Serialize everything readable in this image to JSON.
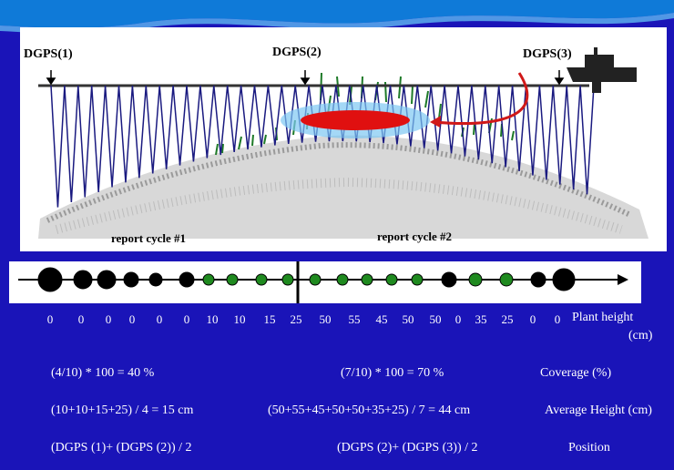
{
  "illustration": {
    "gps_labels": [
      "DGPS(1)",
      "DGPS(2)",
      "DGPS(3)"
    ],
    "cycle_labels": [
      "report cycle #1",
      "report cycle #2"
    ]
  },
  "transect": {
    "heights": [
      "0",
      "0",
      "0",
      "0",
      "0",
      "0",
      "10",
      "10",
      "15",
      "25",
      "50",
      "55",
      "45",
      "50",
      "50",
      "0",
      "35",
      "25",
      "0",
      "0"
    ],
    "axis_label": "Plant height",
    "axis_unit": "(cm)"
  },
  "calculations": {
    "coverage": {
      "cycle1": "(4/10) * 100 = 40 %",
      "cycle2": "(7/10) * 100 = 70 %",
      "label": "Coverage (%)"
    },
    "avg_height": {
      "cycle1": "(10+10+15+25) / 4 = 15 cm",
      "cycle2": "(50+55+45+50+50+35+25) / 7 = 44 cm",
      "label": "Average Height (cm)"
    },
    "position": {
      "cycle1": "(DGPS (1)+ (DGPS (2)) / 2",
      "cycle2": "(DGPS (2)+ (DGPS (3)) / 2",
      "label": "Position"
    }
  },
  "colors": {
    "background": "#1a14b8",
    "plant_dot": "#1f8a1f",
    "bare_dot": "#000000",
    "highlight": "#e01010",
    "arrow": "#d01818"
  }
}
